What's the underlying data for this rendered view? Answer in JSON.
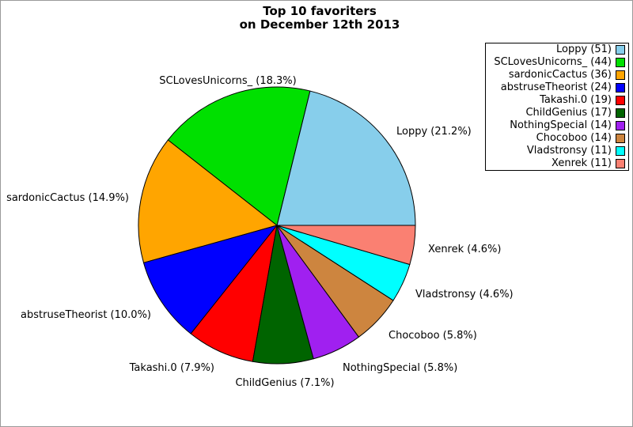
{
  "title": {
    "line1": "Top 10 favoriters",
    "line2": "on December 12th 2013"
  },
  "chart_data": {
    "type": "pie",
    "title": "Top 10 favoriters on December 12th 2013",
    "labels": [
      "Loppy",
      "SCLovesUnicorns_",
      "sardonicCactus",
      "abstruseTheorist",
      "Takashi.0",
      "ChildGenius",
      "NothingSpecial",
      "Chocoboo",
      "Vladstronsy",
      "Xenrek"
    ],
    "values": [
      51,
      44,
      36,
      24,
      19,
      17,
      14,
      14,
      11,
      11
    ],
    "percentages": [
      "21.2",
      "18.3",
      "14.9",
      "10.0",
      "7.9",
      "7.1",
      "5.8",
      "5.8",
      "4.6",
      "4.6"
    ],
    "slice_labels": [
      "Loppy (21.2%)",
      "SCLovesUnicorns_ (18.3%)",
      "sardonicCactus (14.9%)",
      "abstruseTheorist (10.0%)",
      "Takashi.0 (7.9%)",
      "ChildGenius (7.1%)",
      "NothingSpecial (5.8%)",
      "Chocoboo (5.8%)",
      "Vladstronsy (4.6%)",
      "Xenrek (4.6%)"
    ],
    "legend_entries": [
      "Loppy (51)",
      "SCLovesUnicorns_ (44)",
      "sardonicCactus (36)",
      "abstruseTheorist (24)",
      "Takashi.0 (19)",
      "ChildGenius (17)",
      "NothingSpecial (14)",
      "Chocoboo (14)",
      "Vladstronsy (11)",
      "Xenrek (11)"
    ],
    "colors": [
      "#87CEEB",
      "#00E000",
      "#FFA500",
      "#0000FF",
      "#FF0000",
      "#006400",
      "#A020F0",
      "#CD853F",
      "#00FFFF",
      "#FA8072"
    ],
    "start_angle_deg": 0,
    "direction": "counterclockwise",
    "legend_position": "upper right",
    "grid": false
  }
}
